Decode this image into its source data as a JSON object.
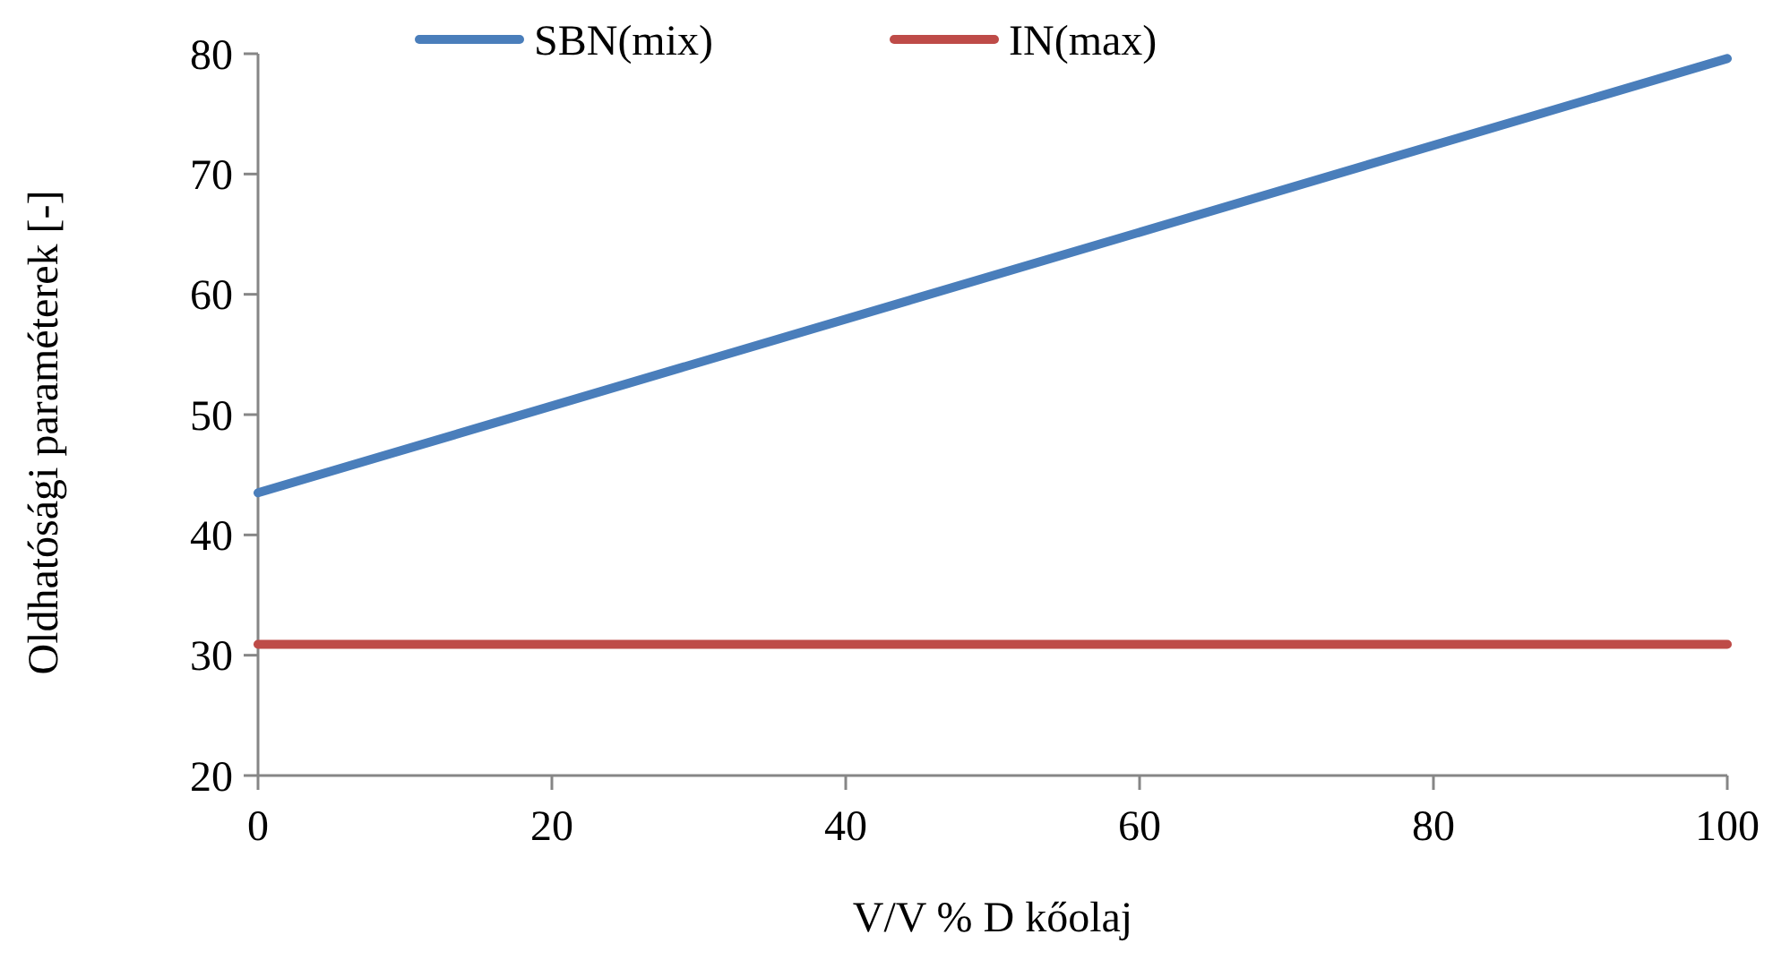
{
  "chart_data": {
    "type": "line",
    "xlabel": "V/V % D kőolaj",
    "ylabel": "Oldhatósági paraméterek [-]",
    "x": [
      0,
      100
    ],
    "series": [
      {
        "name": "SBN(mix)",
        "color": "#4a7ebb",
        "values": [
          43.5,
          79.6
        ]
      },
      {
        "name": "IN(max)",
        "color": "#be4b48",
        "values": [
          30.9,
          30.9
        ]
      }
    ],
    "xlim": [
      0,
      100
    ],
    "xticks": [
      0,
      20,
      40,
      60,
      80,
      100
    ],
    "ylim": [
      20,
      80
    ],
    "yticks": [
      20,
      30,
      40,
      50,
      60,
      70,
      80
    ],
    "grid": false,
    "legend": "top",
    "marker": "none",
    "line_style": "solid"
  }
}
